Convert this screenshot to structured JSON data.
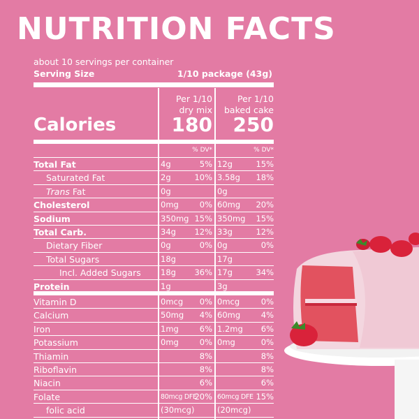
{
  "title": "NUTRITION  FACTS",
  "servings_per_container": "about 10 servings per container",
  "serving_size_label": "Serving Size",
  "serving_size_value": "1/10 package (43g)",
  "columns": {
    "mix": [
      "Per 1/10",
      "dry mix"
    ],
    "cake": [
      "Per 1/10",
      "baked cake"
    ]
  },
  "calories": {
    "label": "Calories",
    "mix": "180",
    "cake": "250"
  },
  "dv_header": "% DV*",
  "nutrients": [
    {
      "name": "Total Fat",
      "bold": true,
      "indent": 0,
      "mix_amt": "4g",
      "mix_dv": "5%",
      "cake_amt": "12g",
      "cake_dv": "15%"
    },
    {
      "name": "Saturated Fat",
      "bold": false,
      "indent": 1,
      "mix_amt": "2g",
      "mix_dv": "10%",
      "cake_amt": "3.58g",
      "cake_dv": "18%"
    },
    {
      "name_italic": "Trans",
      "name_rest": " Fat",
      "bold": false,
      "indent": 1,
      "mix_amt": "0g",
      "mix_dv": "",
      "cake_amt": "0g",
      "cake_dv": ""
    },
    {
      "name": "Cholesterol",
      "bold": true,
      "indent": 0,
      "mix_amt": "0mg",
      "mix_dv": "0%",
      "cake_amt": "60mg",
      "cake_dv": "20%"
    },
    {
      "name": "Sodium",
      "bold": true,
      "indent": 0,
      "mix_amt": "350mg",
      "mix_dv": "15%",
      "cake_amt": "350mg",
      "cake_dv": "15%"
    },
    {
      "name": "Total Carb.",
      "bold": true,
      "indent": 0,
      "mix_amt": "34g",
      "mix_dv": "12%",
      "cake_amt": "33g",
      "cake_dv": "12%"
    },
    {
      "name": "Dietary Fiber",
      "bold": false,
      "indent": 1,
      "mix_amt": "0g",
      "mix_dv": "0%",
      "cake_amt": "0g",
      "cake_dv": "0%"
    },
    {
      "name": "Total Sugars",
      "bold": false,
      "indent": 1,
      "mix_amt": "18g",
      "mix_dv": "",
      "cake_amt": "17g",
      "cake_dv": ""
    },
    {
      "name": "Incl. Added Sugars",
      "bold": false,
      "indent": 2,
      "mix_amt": "18g",
      "mix_dv": "36%",
      "cake_amt": "17g",
      "cake_dv": "34%"
    },
    {
      "name": "Protein",
      "bold": true,
      "indent": 0,
      "mix_amt": "1g",
      "mix_dv": "",
      "cake_amt": "3g",
      "cake_dv": ""
    },
    {
      "name": "Vitamin D",
      "bold": false,
      "indent": 0,
      "mix_amt": "0mcg",
      "mix_dv": "0%",
      "cake_amt": "0mcg",
      "cake_dv": "0%"
    },
    {
      "name": "Calcium",
      "bold": false,
      "indent": 0,
      "mix_amt": "50mg",
      "mix_dv": "4%",
      "cake_amt": "60mg",
      "cake_dv": "4%"
    },
    {
      "name": "Iron",
      "bold": false,
      "indent": 0,
      "mix_amt": "1mg",
      "mix_dv": "6%",
      "cake_amt": "1.2mg",
      "cake_dv": "6%"
    },
    {
      "name": "Potassium",
      "bold": false,
      "indent": 0,
      "mix_amt": "0mg",
      "mix_dv": "0%",
      "cake_amt": "0mg",
      "cake_dv": "0%"
    },
    {
      "name": "Thiamin",
      "bold": false,
      "indent": 0,
      "mix_amt": "",
      "mix_dv": "8%",
      "cake_amt": "",
      "cake_dv": "8%"
    },
    {
      "name": "Riboflavin",
      "bold": false,
      "indent": 0,
      "mix_amt": "",
      "mix_dv": "8%",
      "cake_amt": "",
      "cake_dv": "8%"
    },
    {
      "name": "Niacin",
      "bold": false,
      "indent": 0,
      "mix_amt": "",
      "mix_dv": "6%",
      "cake_amt": "",
      "cake_dv": "6%"
    },
    {
      "name": "Folate",
      "bold": false,
      "indent": 0,
      "mix_amt": "80mcg DFE",
      "mix_dv": "20%",
      "cake_amt": "60mcg DFE",
      "cake_dv": "15%",
      "small": true
    },
    {
      "name": "folic acid",
      "bold": false,
      "indent": 1,
      "mix_amt": "(30mcg)",
      "mix_dv": "",
      "cake_amt": "(20mcg)",
      "cake_dv": ""
    }
  ],
  "colors": {
    "background": "#e37ba4",
    "text": "#ffffff",
    "cake_frosting": "#f3d6df",
    "cake_crumb": "#e2525f",
    "strawberry": "#d9223a"
  }
}
